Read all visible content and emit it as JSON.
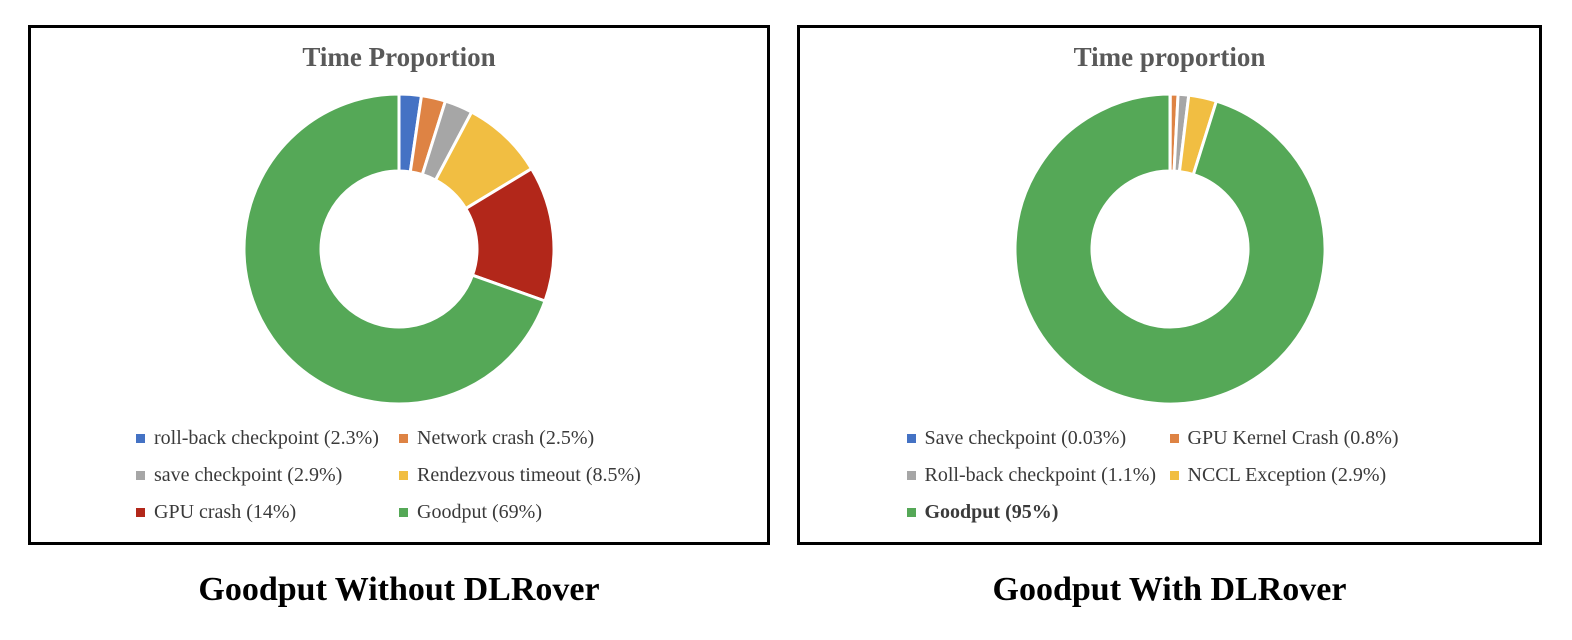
{
  "figure": {
    "background": "#ffffff",
    "panel_border_color": "#000000",
    "title_color": "#595959",
    "legend_text_color": "#3a3a3a",
    "caption_color": "#000000",
    "slice_gap_color": "#ffffff"
  },
  "chart_data": [
    {
      "type": "pie",
      "subtype": "donut",
      "title": "Time Proportion",
      "caption": "Goodput Without DLRover",
      "legend_position": "bottom",
      "legend_columns": 2,
      "start_angle_deg": 0,
      "direction": "clockwise",
      "inner_radius_ratio": 0.5,
      "slices": [
        {
          "label": "roll-back checkpoint",
          "value": 2.3,
          "legend": "roll-back checkpoint (2.3%)",
          "color": "#4472C4",
          "bold": false
        },
        {
          "label": "Network crash",
          "value": 2.5,
          "legend": "Network crash (2.5%)",
          "color": "#DE8344",
          "bold": false
        },
        {
          "label": "save checkpoint",
          "value": 2.9,
          "legend": "save checkpoint (2.9%)",
          "color": "#A6A6A6",
          "bold": false
        },
        {
          "label": "Rendezvous timeout",
          "value": 8.5,
          "legend": "Rendezvous timeout (8.5%)",
          "color": "#F1BE42",
          "bold": false
        },
        {
          "label": "GPU crash",
          "value": 14,
          "legend": "GPU crash (14%)",
          "color": "#B2271A",
          "bold": false
        },
        {
          "label": "Goodput",
          "value": 69,
          "legend": "Goodput (69%)",
          "color": "#55A857",
          "bold": false
        }
      ]
    },
    {
      "type": "pie",
      "subtype": "donut",
      "title": "Time proportion",
      "caption": "Goodput With DLRover",
      "legend_position": "bottom",
      "legend_columns": 2,
      "start_angle_deg": 0,
      "direction": "clockwise",
      "inner_radius_ratio": 0.5,
      "slices": [
        {
          "label": "Save checkpoint",
          "value": 0.03,
          "legend": "Save checkpoint (0.03%)",
          "color": "#4472C4",
          "bold": false
        },
        {
          "label": "GPU Kernel Crash",
          "value": 0.8,
          "legend": "GPU Kernel Crash (0.8%)",
          "color": "#DE8344",
          "bold": false
        },
        {
          "label": "Roll-back checkpoint",
          "value": 1.1,
          "legend": "Roll-back checkpoint (1.1%)",
          "color": "#A6A6A6",
          "bold": false
        },
        {
          "label": "NCCL Exception",
          "value": 2.9,
          "legend": "NCCL Exception (2.9%)",
          "color": "#F1BE42",
          "bold": false
        },
        {
          "label": "Goodput",
          "value": 95,
          "legend": "Goodput (95%)",
          "color": "#55A857",
          "bold": true
        }
      ]
    }
  ]
}
